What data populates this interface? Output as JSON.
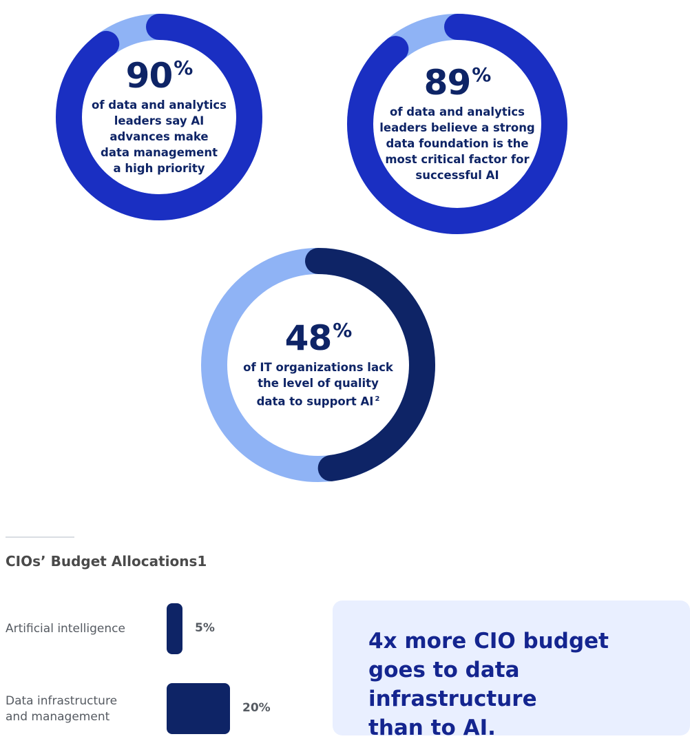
{
  "chart_data": [
    {
      "type": "pie",
      "stat": "90",
      "stat_unit": "%",
      "value": 90,
      "caption_lines": [
        "of data and analytics",
        "leaders say AI",
        "advances make",
        "data management",
        "a high priority"
      ],
      "colors": {
        "value": "#1a2fc2",
        "remainder": "#8fb3f5"
      }
    },
    {
      "type": "pie",
      "stat": "89",
      "stat_unit": "%",
      "value": 89,
      "caption_lines": [
        "of data and analytics",
        "leaders believe a strong",
        "data foundation is the",
        "most critical factor for",
        "successful AI"
      ],
      "colors": {
        "value": "#1a2fc2",
        "remainder": "#8fb3f5"
      }
    },
    {
      "type": "pie",
      "stat": "48",
      "stat_unit": "%",
      "value": 48,
      "caption_lines": [
        "of IT organizations lack",
        "the level of quality",
        "data to support AI"
      ],
      "footnote": "2",
      "colors": {
        "value": "#0e2466",
        "remainder": "#8fb3f5"
      }
    },
    {
      "type": "bar",
      "title": "CIOs’ Budget Allocations",
      "title_footnote": "1",
      "categories": [
        "Artificial intelligence",
        "Data infrastructure and management"
      ],
      "category_lines": [
        [
          "Artificial intelligence"
        ],
        [
          "Data infrastructure",
          "and management"
        ]
      ],
      "values": [
        5,
        20
      ],
      "value_labels": [
        "5%",
        "20%"
      ],
      "color": "#0e2466"
    }
  ],
  "callout": {
    "lines": [
      "4x more CIO budget",
      "goes to data infrastructure",
      "than to AI."
    ]
  }
}
